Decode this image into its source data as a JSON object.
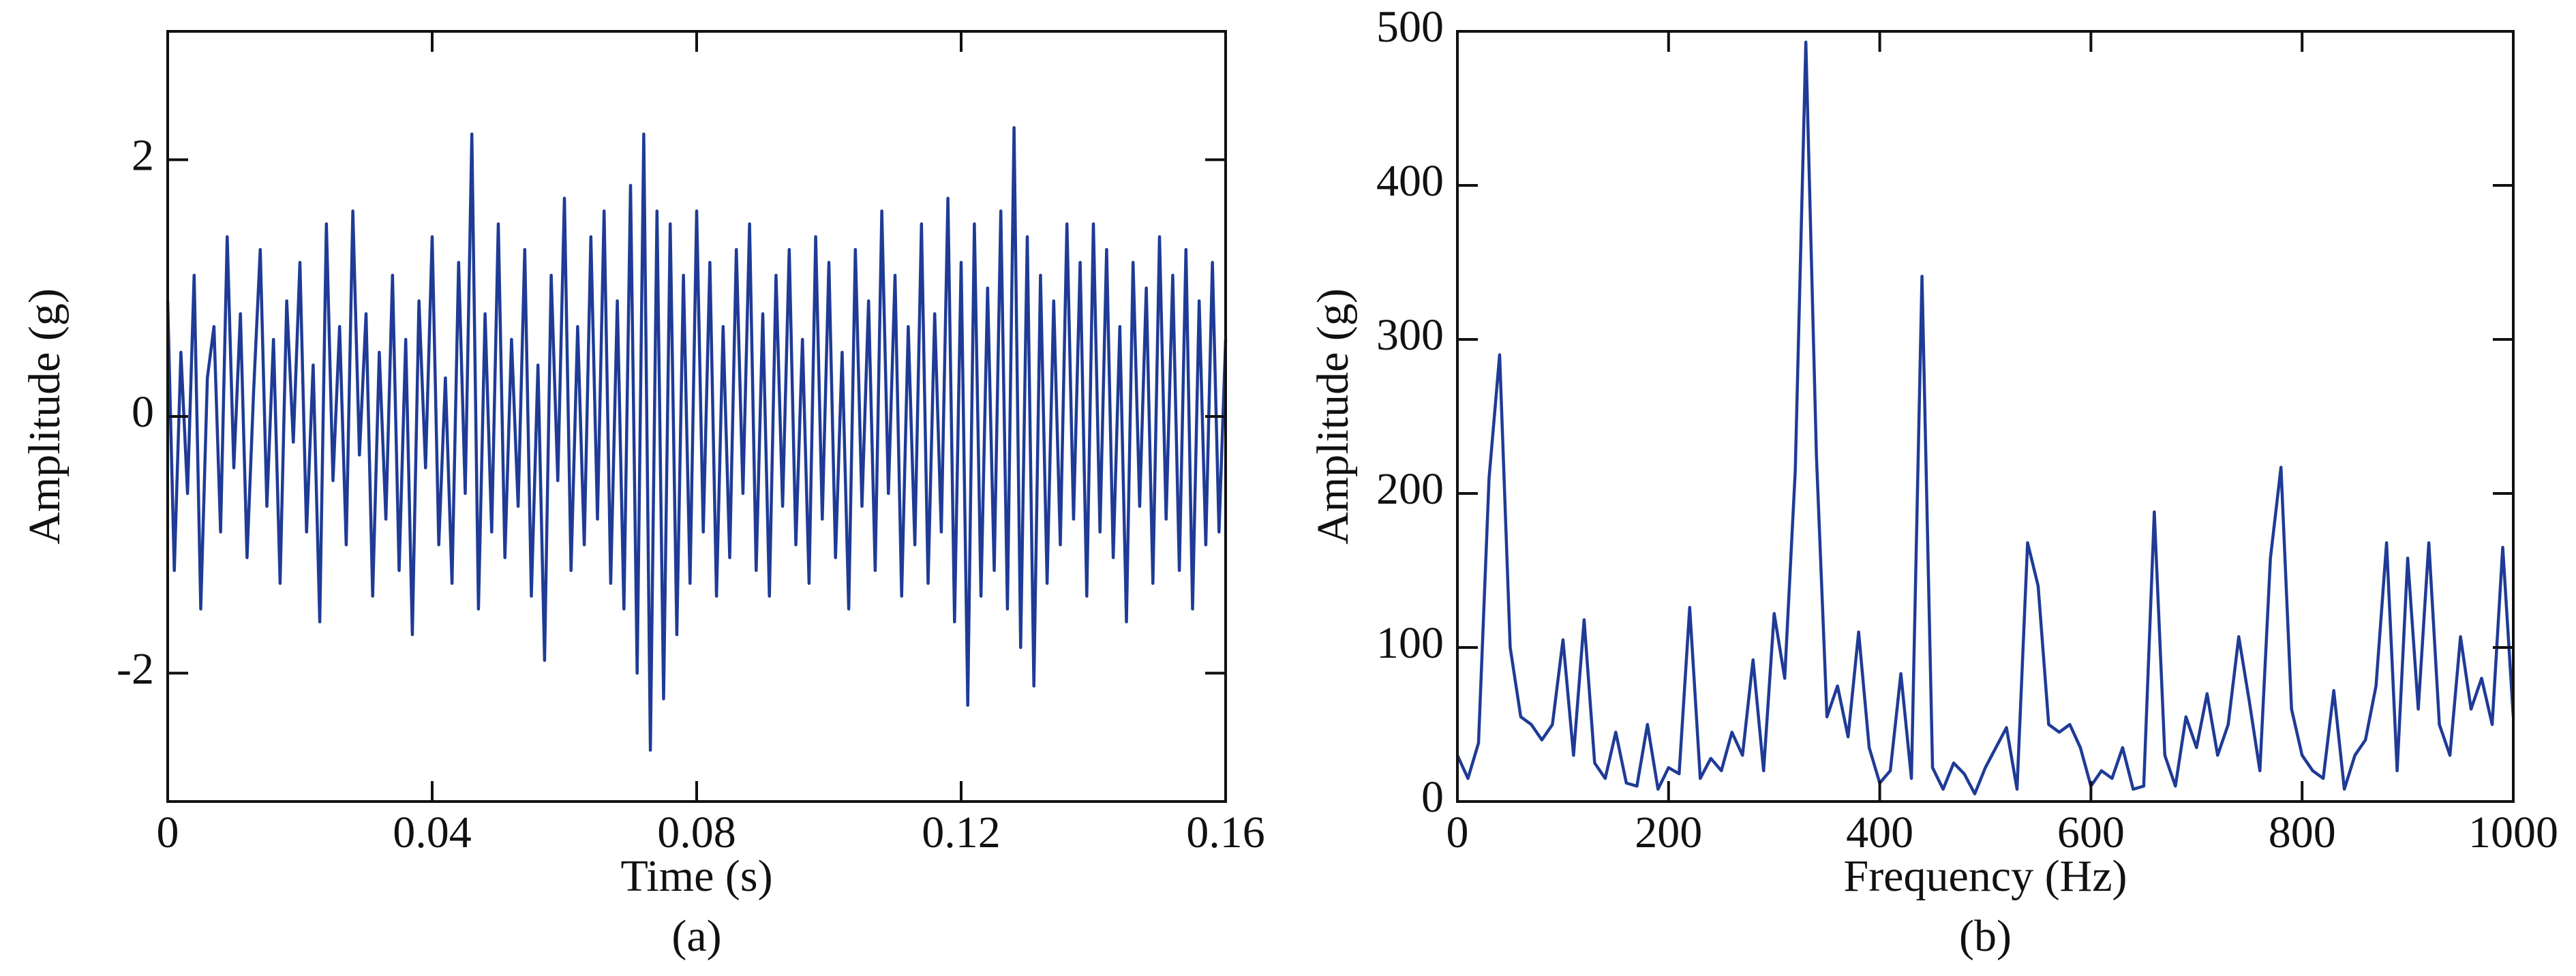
{
  "chart_data": [
    {
      "type": "line",
      "caption": "(a)",
      "xlabel": "Time (s)",
      "ylabel": "Amplitude (g)",
      "color": "#1f3b96",
      "xlim": [
        0,
        0.16
      ],
      "xticks": [
        0,
        0.04,
        0.08,
        0.12,
        0.16
      ],
      "ylim": [
        -3,
        3
      ],
      "yticks": [
        -2,
        0,
        2
      ],
      "x": [
        0,
        0.001,
        0.002,
        0.003,
        0.004,
        0.005,
        0.006,
        0.007,
        0.008,
        0.009,
        0.01,
        0.011,
        0.012,
        0.013,
        0.014,
        0.015,
        0.016,
        0.017,
        0.018,
        0.019,
        0.02,
        0.021,
        0.022,
        0.023,
        0.024,
        0.025,
        0.026,
        0.027,
        0.028,
        0.029,
        0.03,
        0.031,
        0.032,
        0.033,
        0.034,
        0.035,
        0.036,
        0.037,
        0.038,
        0.039,
        0.04,
        0.041,
        0.042,
        0.043,
        0.044,
        0.045,
        0.046,
        0.047,
        0.048,
        0.049,
        0.05,
        0.051,
        0.052,
        0.053,
        0.054,
        0.055,
        0.056,
        0.057,
        0.058,
        0.059,
        0.06,
        0.061,
        0.062,
        0.063,
        0.064,
        0.065,
        0.066,
        0.067,
        0.068,
        0.069,
        0.07,
        0.071,
        0.072,
        0.073,
        0.074,
        0.075,
        0.076,
        0.077,
        0.078,
        0.079,
        0.08,
        0.081,
        0.082,
        0.083,
        0.084,
        0.085,
        0.086,
        0.087,
        0.088,
        0.089,
        0.09,
        0.091,
        0.092,
        0.093,
        0.094,
        0.095,
        0.096,
        0.097,
        0.098,
        0.099,
        0.1,
        0.101,
        0.102,
        0.103,
        0.104,
        0.105,
        0.106,
        0.107,
        0.108,
        0.109,
        0.11,
        0.111,
        0.112,
        0.113,
        0.114,
        0.115,
        0.116,
        0.117,
        0.118,
        0.119,
        0.12,
        0.121,
        0.122,
        0.123,
        0.124,
        0.125,
        0.126,
        0.127,
        0.128,
        0.129,
        0.13,
        0.131,
        0.132,
        0.133,
        0.134,
        0.135,
        0.136,
        0.137,
        0.138,
        0.139,
        0.14,
        0.141,
        0.142,
        0.143,
        0.144,
        0.145,
        0.146,
        0.147,
        0.148,
        0.149,
        0.15,
        0.151,
        0.152,
        0.153,
        0.154,
        0.155,
        0.156,
        0.157,
        0.158,
        0.159,
        0.16
      ],
      "values": [
        0.9,
        -1.2,
        0.5,
        -0.6,
        1.1,
        -1.5,
        0.3,
        0.7,
        -0.9,
        1.4,
        -0.4,
        0.8,
        -1.1,
        0.2,
        1.3,
        -0.7,
        0.6,
        -1.3,
        0.9,
        -0.2,
        1.2,
        -0.9,
        0.4,
        -1.6,
        1.5,
        -0.5,
        0.7,
        -1.0,
        1.6,
        -0.3,
        0.8,
        -1.4,
        0.5,
        -0.8,
        1.1,
        -1.2,
        0.6,
        -1.7,
        0.9,
        -0.4,
        1.4,
        -1.0,
        0.3,
        -1.3,
        1.2,
        -0.6,
        2.2,
        -1.5,
        0.8,
        -0.9,
        1.5,
        -1.1,
        0.6,
        -0.7,
        1.3,
        -1.4,
        0.4,
        -1.9,
        1.1,
        -0.5,
        1.7,
        -1.2,
        0.7,
        -1.0,
        1.4,
        -0.8,
        1.6,
        -1.3,
        0.9,
        -1.5,
        1.8,
        -2.0,
        2.2,
        -2.6,
        1.6,
        -2.2,
        1.5,
        -1.7,
        1.1,
        -1.3,
        1.6,
        -0.9,
        1.2,
        -1.4,
        0.7,
        -1.1,
        1.3,
        -0.6,
        1.5,
        -1.2,
        0.8,
        -1.4,
        1.1,
        -0.7,
        1.3,
        -1.0,
        0.6,
        -1.3,
        1.4,
        -0.8,
        1.2,
        -1.1,
        0.5,
        -1.5,
        1.3,
        -0.7,
        0.9,
        -1.2,
        1.6,
        -0.6,
        1.1,
        -1.4,
        0.7,
        -1.0,
        1.5,
        -1.3,
        0.8,
        -0.9,
        1.7,
        -1.6,
        1.2,
        -2.25,
        1.5,
        -1.4,
        1.0,
        -1.2,
        1.6,
        -1.5,
        2.25,
        -1.8,
        1.4,
        -2.1,
        1.1,
        -1.3,
        0.9,
        -1.0,
        1.5,
        -0.8,
        1.2,
        -1.4,
        1.5,
        -0.9,
        1.3,
        -1.1,
        0.7,
        -1.6,
        1.2,
        -0.7,
        1.0,
        -1.3,
        1.4,
        -0.8,
        1.1,
        -1.2,
        1.3,
        -1.5,
        0.9,
        -1.0,
        1.2,
        -0.9,
        0.6
      ]
    },
    {
      "type": "line",
      "caption": "(b)",
      "xlabel": "Frequency (Hz)",
      "ylabel": "Amplitude (g)",
      "color": "#1f3b96",
      "xlim": [
        0,
        1000
      ],
      "xticks": [
        0,
        200,
        400,
        600,
        800,
        1000
      ],
      "ylim": [
        0,
        500
      ],
      "yticks": [
        0,
        100,
        200,
        300,
        400,
        500
      ],
      "x": [
        0,
        10,
        20,
        30,
        40,
        50,
        60,
        70,
        80,
        90,
        100,
        110,
        120,
        130,
        140,
        150,
        160,
        170,
        180,
        190,
        200,
        210,
        220,
        230,
        240,
        250,
        260,
        270,
        280,
        290,
        300,
        310,
        320,
        330,
        340,
        350,
        360,
        370,
        380,
        390,
        400,
        410,
        420,
        430,
        440,
        450,
        460,
        470,
        480,
        490,
        500,
        510,
        520,
        530,
        540,
        550,
        560,
        570,
        580,
        590,
        600,
        610,
        620,
        630,
        640,
        650,
        660,
        670,
        680,
        690,
        700,
        710,
        720,
        730,
        740,
        750,
        760,
        770,
        780,
        790,
        800,
        810,
        820,
        830,
        840,
        850,
        860,
        870,
        880,
        890,
        900,
        910,
        920,
        930,
        940,
        950,
        960,
        970,
        980,
        990,
        1000
      ],
      "values": [
        30,
        15,
        38,
        210,
        290,
        100,
        55,
        50,
        40,
        50,
        105,
        30,
        118,
        25,
        15,
        45,
        12,
        10,
        50,
        8,
        22,
        18,
        126,
        15,
        28,
        20,
        45,
        30,
        92,
        20,
        122,
        80,
        215,
        493,
        225,
        55,
        75,
        42,
        110,
        35,
        12,
        20,
        83,
        15,
        341,
        22,
        8,
        25,
        18,
        5,
        22,
        35,
        48,
        8,
        168,
        140,
        50,
        45,
        50,
        35,
        10,
        20,
        15,
        35,
        8,
        10,
        188,
        30,
        10,
        55,
        35,
        70,
        30,
        50,
        107,
        65,
        20,
        158,
        217,
        60,
        30,
        20,
        15,
        72,
        8,
        30,
        40,
        75,
        168,
        20,
        158,
        60,
        168,
        50,
        30,
        107,
        60,
        80,
        50,
        165,
        55
      ]
    }
  ]
}
